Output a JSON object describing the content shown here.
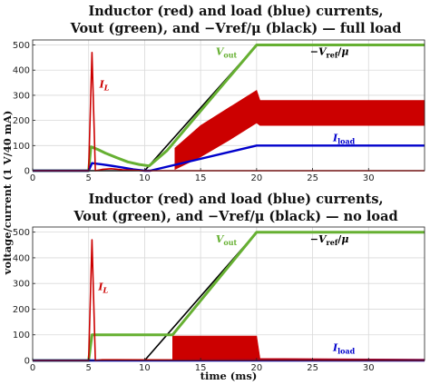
{
  "ylabel": "voltage/current (1 V/40 mA)",
  "chart_data": [
    {
      "type": "line",
      "title_lines": [
        "Inductor (red) and load (blue) currents,",
        "Vout (green), and −Vref/μ (black) — full load"
      ],
      "xlabel": "",
      "xlim": [
        0,
        35
      ],
      "ylim": [
        0,
        520
      ],
      "xticks": [
        0,
        5,
        10,
        15,
        20,
        25,
        30
      ],
      "yticks": [
        0,
        100,
        200,
        300,
        400,
        500
      ],
      "grid": true,
      "annotations": [
        {
          "text": "I_L",
          "x": 6.4,
          "y": 330,
          "color": "#cc0000"
        },
        {
          "text": "Vout",
          "x": 17.3,
          "y": 460,
          "color": "#66b032"
        },
        {
          "text": "−Vref/μ",
          "x": 26.5,
          "y": 460,
          "color": "#000000"
        },
        {
          "text": "Iload",
          "x": 27.8,
          "y": 118,
          "color": "#0000cc"
        }
      ],
      "series": [
        {
          "name": "−Vref/μ",
          "color": "#000000",
          "x": [
            0,
            10,
            20,
            35
          ],
          "y": [
            0,
            0,
            500,
            500
          ]
        },
        {
          "name": "Vout",
          "color": "#66b032",
          "x": [
            0,
            5,
            5.2,
            5.8,
            6.5,
            7.5,
            8.5,
            9.5,
            10.4,
            12,
            20,
            35
          ],
          "y": [
            0,
            0,
            95,
            85,
            70,
            52,
            35,
            25,
            19,
            80,
            500,
            500
          ]
        },
        {
          "name": "Iload",
          "color": "#0000cc",
          "x": [
            0,
            5,
            5.3,
            6.2,
            7,
            8,
            9,
            10,
            10.5,
            20,
            35
          ],
          "y": [
            0,
            0,
            30,
            25,
            20,
            13,
            5,
            0,
            0,
            100,
            100
          ]
        },
        {
          "name": "I_L",
          "color": "#cc0000",
          "x": [
            0,
            5,
            5.3,
            5.6,
            6.2,
            7,
            8,
            9,
            10,
            10.5,
            35
          ],
          "y": [
            0,
            0,
            470,
            0,
            5,
            8,
            4,
            2,
            0,
            0,
            0
          ],
          "band": {
            "x": [
              12.7,
              15,
              17.5,
              20,
              20.3,
              35
            ],
            "low": [
              5,
              55,
              120,
              190,
              180,
              180
            ],
            "high": [
              90,
              180,
              250,
              320,
              280,
              280
            ]
          }
        }
      ]
    },
    {
      "type": "line",
      "title_lines": [
        "Inductor (red) and load (blue) currents,",
        "Vout (green), and −Vref/μ (black) — no load"
      ],
      "xlabel": "time (ms)",
      "xlim": [
        0,
        35
      ],
      "ylim": [
        0,
        520
      ],
      "xticks": [
        0,
        5,
        10,
        15,
        20,
        25,
        30
      ],
      "yticks": [
        0,
        100,
        200,
        300,
        400,
        500
      ],
      "grid": true,
      "annotations": [
        {
          "text": "I_L",
          "x": 6.3,
          "y": 275,
          "color": "#cc0000"
        },
        {
          "text": "Vout",
          "x": 17.3,
          "y": 460,
          "color": "#66b032"
        },
        {
          "text": "−Vref/μ",
          "x": 26.5,
          "y": 460,
          "color": "#000000"
        },
        {
          "text": "Iload",
          "x": 27.8,
          "y": 38,
          "color": "#0000cc"
        }
      ],
      "series": [
        {
          "name": "−Vref/μ",
          "color": "#000000",
          "x": [
            0,
            10,
            20,
            35
          ],
          "y": [
            0,
            0,
            500,
            500
          ]
        },
        {
          "name": "Vout",
          "color": "#66b032",
          "x": [
            0,
            5,
            5.3,
            12.5,
            20,
            35
          ],
          "y": [
            0,
            0,
            100,
            100,
            500,
            500
          ]
        },
        {
          "name": "Iload",
          "color": "#0000cc",
          "x": [
            0,
            35
          ],
          "y": [
            0,
            0
          ]
        },
        {
          "name": "I_L",
          "color": "#cc0000",
          "x": [
            0,
            5,
            5.3,
            5.6,
            6.2,
            35
          ],
          "y": [
            0,
            0,
            470,
            0,
            3,
            0
          ],
          "band": {
            "x": [
              12.5,
              20,
              20.3,
              35
            ],
            "low": [
              0,
              0,
              0,
              0
            ],
            "high": [
              95,
              95,
              8,
              5
            ]
          }
        }
      ]
    }
  ]
}
